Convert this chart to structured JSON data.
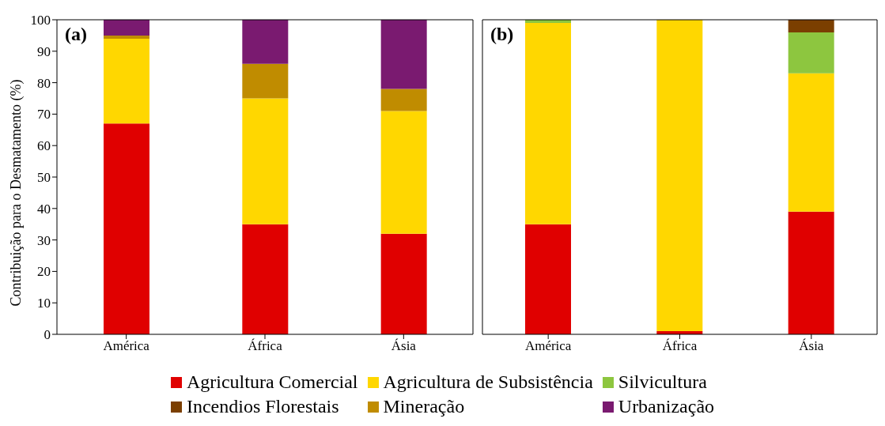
{
  "chart_data": [
    {
      "type": "bar",
      "stacked": true,
      "ylabel": "Contribuição para o Desmatamento (%)",
      "annotations": [
        "(a)"
      ],
      "categories": [
        "América",
        "África",
        "Ásia"
      ],
      "ylim": [
        0,
        100
      ],
      "yticks": [
        0,
        10,
        20,
        30,
        40,
        50,
        60,
        70,
        80,
        90,
        100
      ],
      "legend": "bottom",
      "series": [
        {
          "name": "Agricultura Comercial",
          "color": "#e00000",
          "values": [
            67,
            35,
            32
          ]
        },
        {
          "name": "Agricultura de Subsistência",
          "color": "#ffd700",
          "values": [
            27,
            40,
            39
          ]
        },
        {
          "name": "Silvicultura",
          "color": "#8dc63f",
          "values": [
            null,
            null,
            null
          ]
        },
        {
          "name": "Incendios Florestais",
          "color": "#7b3f00",
          "values": [
            null,
            null,
            null
          ]
        },
        {
          "name": "Mineração",
          "color": "#c08c00",
          "values": [
            1,
            11,
            7
          ]
        },
        {
          "name": "Urbanização",
          "color": "#7a1a70",
          "values": [
            5,
            14,
            22
          ]
        }
      ]
    },
    {
      "type": "bar",
      "stacked": true,
      "annotations": [
        "(b)"
      ],
      "categories": [
        "América",
        "África",
        "Ásia"
      ],
      "ylim": [
        0,
        100
      ],
      "yticks": [
        0,
        10,
        20,
        30,
        40,
        50,
        60,
        70,
        80,
        90,
        100
      ],
      "tick_labels": "x",
      "series": [
        {
          "color": "#e00000",
          "values": [
            35,
            1,
            39
          ]
        },
        {
          "color": "#ffd700",
          "values": [
            64,
            99,
            44
          ]
        },
        {
          "color": "#8dc63f",
          "values": [
            1,
            null,
            13
          ]
        },
        {
          "color": "#7b3f00",
          "values": [
            null,
            null,
            4
          ]
        }
      ]
    }
  ]
}
